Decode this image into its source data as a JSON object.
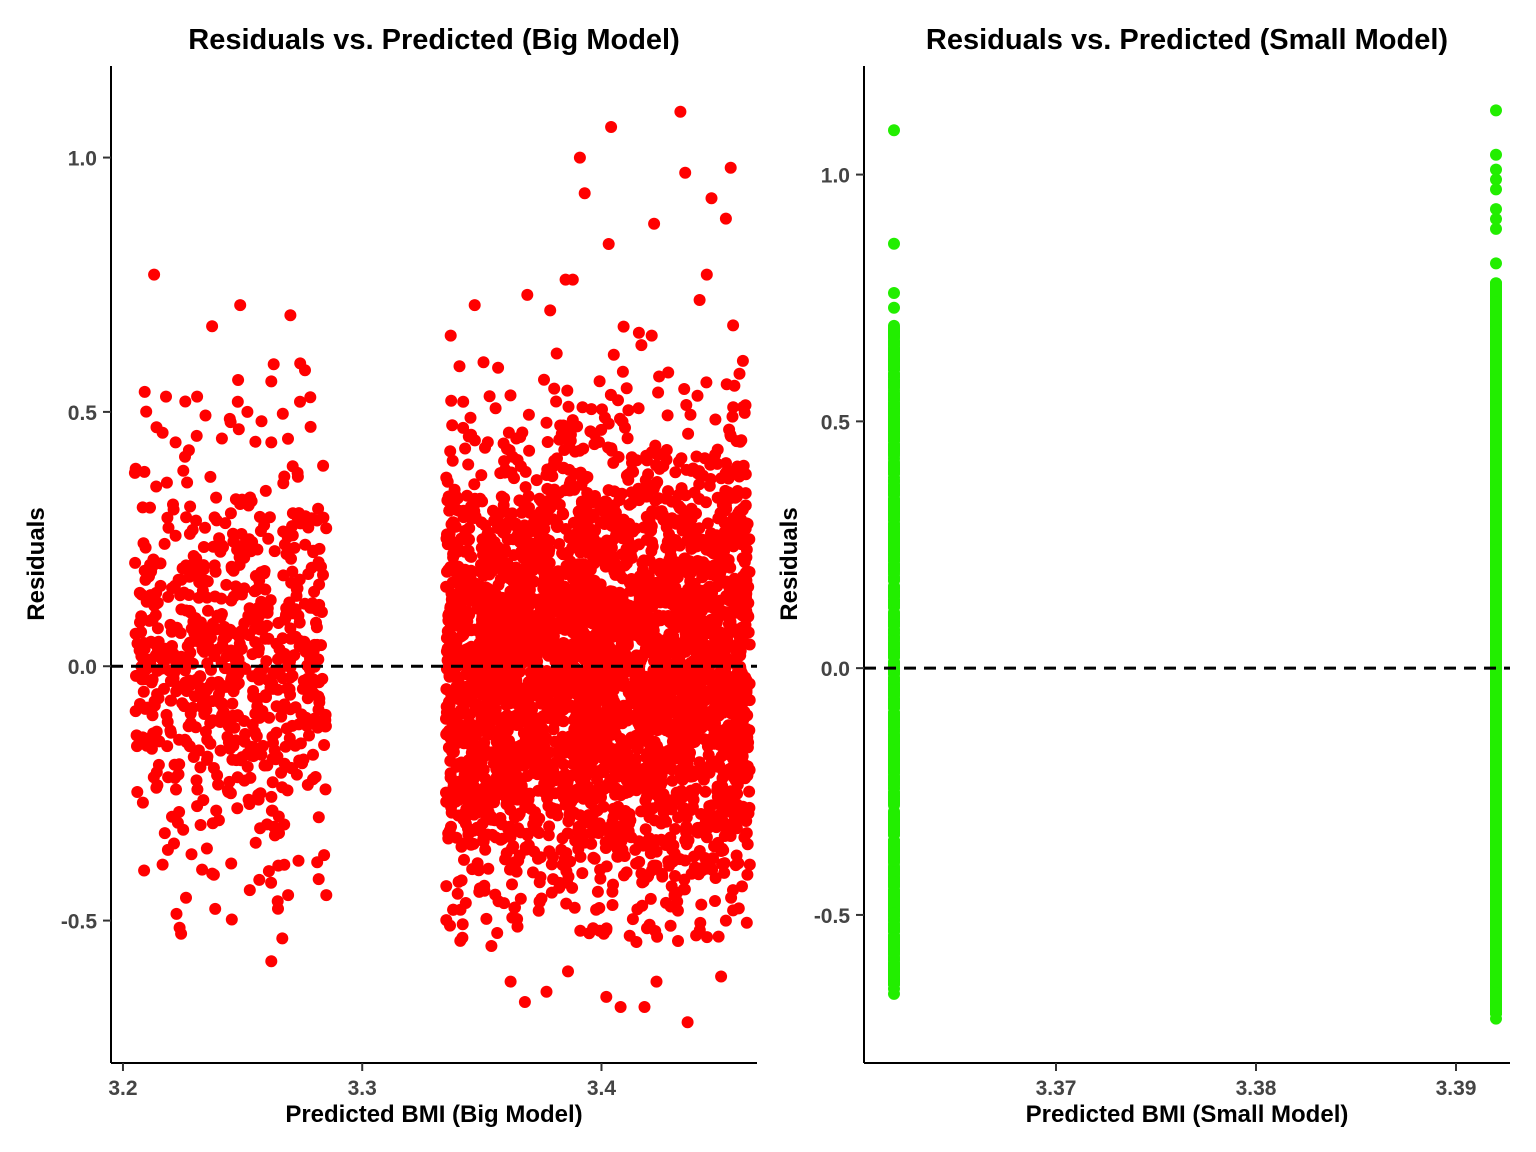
{
  "chart_data": [
    {
      "type": "scatter",
      "title": "Residuals vs. Predicted (Big Model)",
      "xlabel": "Predicted BMI (Big Model)",
      "ylabel": "Residuals",
      "xlim": [
        3.195,
        3.465
      ],
      "ylim": [
        -0.78,
        1.18
      ],
      "xticks": [
        3.2,
        3.3,
        3.4
      ],
      "xtick_labels": [
        "3.2",
        "3.3",
        "3.4"
      ],
      "yticks": [
        -0.5,
        0.0,
        0.5,
        1.0
      ],
      "ytick_labels": [
        "-0.5",
        "0.0",
        "0.5",
        "1.0"
      ],
      "color": "#ff0000",
      "reference_line": 0.0,
      "grid": false,
      "clusters": [
        {
          "x_range": [
            3.205,
            3.285
          ],
          "count": 700,
          "y_sd": 0.2
        },
        {
          "x_range": [
            3.335,
            3.462
          ],
          "count": 3600,
          "y_sd": 0.22
        }
      ],
      "points": [
        {
          "x": 3.213,
          "y": 0.77
        },
        {
          "x": 3.249,
          "y": 0.71
        },
        {
          "x": 3.27,
          "y": 0.69
        },
        {
          "x": 3.262,
          "y": 0.56
        },
        {
          "x": 3.274,
          "y": 0.52
        },
        {
          "x": 3.218,
          "y": 0.53
        },
        {
          "x": 3.231,
          "y": 0.53
        },
        {
          "x": 3.248,
          "y": 0.52
        },
        {
          "x": 3.252,
          "y": 0.5
        },
        {
          "x": 3.245,
          "y": 0.48
        },
        {
          "x": 3.214,
          "y": 0.47
        },
        {
          "x": 3.222,
          "y": 0.44
        },
        {
          "x": 3.262,
          "y": 0.44
        },
        {
          "x": 3.205,
          "y": 0.38
        },
        {
          "x": 3.273,
          "y": 0.38
        },
        {
          "x": 3.262,
          "y": -0.58
        },
        {
          "x": 3.253,
          "y": -0.44
        },
        {
          "x": 3.269,
          "y": -0.45
        },
        {
          "x": 3.285,
          "y": -0.45
        },
        {
          "x": 3.238,
          "y": -0.41
        },
        {
          "x": 3.257,
          "y": -0.42
        },
        {
          "x": 3.433,
          "y": 1.09
        },
        {
          "x": 3.404,
          "y": 1.06
        },
        {
          "x": 3.391,
          "y": 1.0
        },
        {
          "x": 3.454,
          "y": 0.98
        },
        {
          "x": 3.435,
          "y": 0.97
        },
        {
          "x": 3.393,
          "y": 0.93
        },
        {
          "x": 3.446,
          "y": 0.92
        },
        {
          "x": 3.452,
          "y": 0.88
        },
        {
          "x": 3.422,
          "y": 0.87
        },
        {
          "x": 3.403,
          "y": 0.83
        },
        {
          "x": 3.444,
          "y": 0.77
        },
        {
          "x": 3.388,
          "y": 0.76
        },
        {
          "x": 3.385,
          "y": 0.76
        },
        {
          "x": 3.441,
          "y": 0.72
        },
        {
          "x": 3.369,
          "y": 0.73
        },
        {
          "x": 3.347,
          "y": 0.71
        },
        {
          "x": 3.337,
          "y": 0.65
        },
        {
          "x": 3.421,
          "y": 0.65
        },
        {
          "x": 3.455,
          "y": 0.67
        },
        {
          "x": 3.341,
          "y": -0.54
        },
        {
          "x": 3.354,
          "y": -0.55
        },
        {
          "x": 3.362,
          "y": -0.62
        },
        {
          "x": 3.368,
          "y": -0.66
        },
        {
          "x": 3.377,
          "y": -0.64
        },
        {
          "x": 3.386,
          "y": -0.6
        },
        {
          "x": 3.402,
          "y": -0.65
        },
        {
          "x": 3.408,
          "y": -0.67
        },
        {
          "x": 3.418,
          "y": -0.67
        },
        {
          "x": 3.423,
          "y": -0.62
        },
        {
          "x": 3.436,
          "y": -0.7
        },
        {
          "x": 3.45,
          "y": -0.61
        },
        {
          "x": 3.462,
          "y": -0.39
        },
        {
          "x": 3.461,
          "y": -0.41
        },
        {
          "x": 3.455,
          "y": -0.48
        },
        {
          "x": 3.452,
          "y": -0.5
        }
      ]
    },
    {
      "type": "scatter",
      "title": "Residuals vs. Predicted (Small Model)",
      "xlabel": "Predicted BMI (Small Model)",
      "ylabel": "Residuals",
      "xlim": [
        3.3604,
        3.3927
      ],
      "ylim": [
        -0.8,
        1.22
      ],
      "xticks": [
        3.37,
        3.38,
        3.39
      ],
      "xtick_labels": [
        "3.37",
        "3.38",
        "3.39"
      ],
      "yticks": [
        -0.5,
        0.0,
        0.5,
        1.0
      ],
      "ytick_labels": [
        "-0.5",
        "0.0",
        "0.5",
        "1.0"
      ],
      "color": "#22ee00",
      "reference_line": 0.0,
      "grid": false,
      "groups": [
        {
          "x": 3.3619,
          "y_min": -0.65,
          "y_max": 0.7,
          "count": 700
        },
        {
          "x": 3.392,
          "y_min": -0.7,
          "y_max": 0.78,
          "count": 3600
        }
      ],
      "points": [
        {
          "x": 3.3619,
          "y": 1.09
        },
        {
          "x": 3.3619,
          "y": 0.86
        },
        {
          "x": 3.3619,
          "y": 0.76
        },
        {
          "x": 3.3619,
          "y": 0.73
        },
        {
          "x": 3.3619,
          "y": -0.62
        },
        {
          "x": 3.3619,
          "y": -0.66
        },
        {
          "x": 3.392,
          "y": 1.13
        },
        {
          "x": 3.392,
          "y": 1.04
        },
        {
          "x": 3.392,
          "y": 1.01
        },
        {
          "x": 3.392,
          "y": 0.99
        },
        {
          "x": 3.392,
          "y": 0.97
        },
        {
          "x": 3.392,
          "y": 0.93
        },
        {
          "x": 3.392,
          "y": 0.91
        },
        {
          "x": 3.392,
          "y": 0.89
        },
        {
          "x": 3.392,
          "y": 0.82
        },
        {
          "x": 3.392,
          "y": -0.69
        },
        {
          "x": 3.392,
          "y": -0.71
        }
      ]
    }
  ]
}
